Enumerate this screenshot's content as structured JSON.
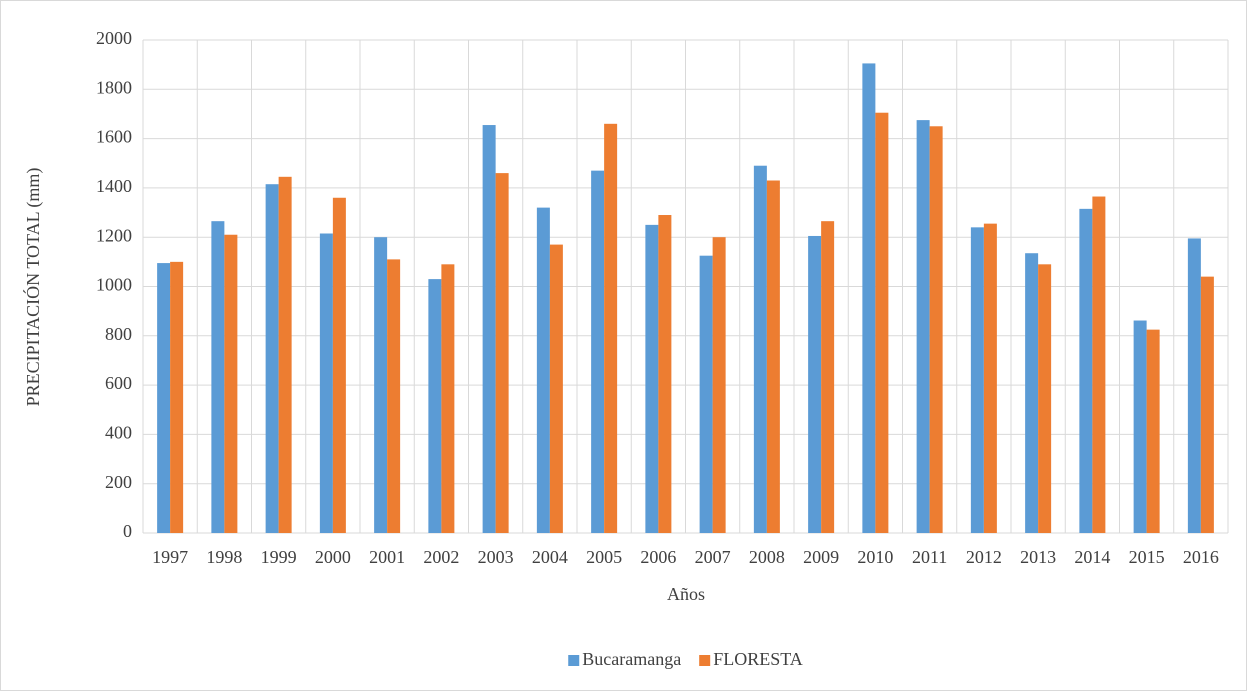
{
  "chart_data": {
    "type": "bar",
    "y_label": "PRECIPITACIÓN TOTAL (mm)",
    "x_label": "Años",
    "categories": [
      "1997",
      "1998",
      "1999",
      "2000",
      "2001",
      "2002",
      "2003",
      "2004",
      "2005",
      "2006",
      "2007",
      "2008",
      "2009",
      "2010",
      "2011",
      "2012",
      "2013",
      "2014",
      "2015",
      "2016"
    ],
    "series": [
      {
        "name": "Bucaramanga",
        "color": "#5b9bd5",
        "values": [
          1095,
          1265,
          1415,
          1215,
          1200,
          1030,
          1655,
          1320,
          1470,
          1250,
          1125,
          1490,
          1205,
          1905,
          1675,
          1240,
          1135,
          1315,
          862,
          1195
        ]
      },
      {
        "name": "FLORESTA",
        "color": "#ed7d31",
        "values": [
          1100,
          1210,
          1445,
          1360,
          1110,
          1090,
          1460,
          1170,
          1660,
          1290,
          1200,
          1430,
          1265,
          1705,
          1650,
          1255,
          1090,
          1365,
          825,
          1040
        ]
      }
    ],
    "ylim": [
      0,
      2000
    ],
    "yticks": [
      0,
      200,
      400,
      600,
      800,
      1000,
      1200,
      1400,
      1600,
      1800,
      2000
    ],
    "grid": true,
    "legend": "bottom"
  }
}
